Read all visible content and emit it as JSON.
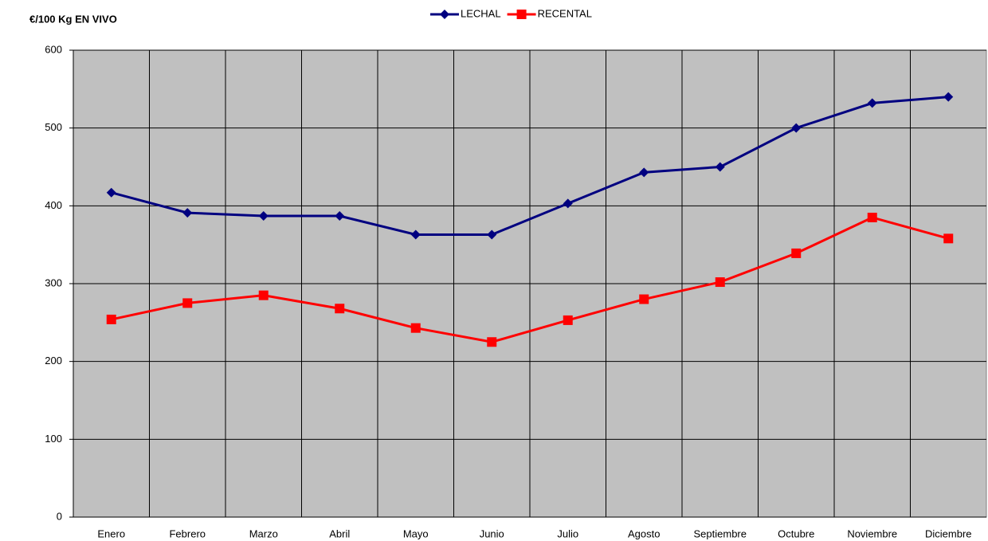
{
  "chart_data": {
    "type": "line",
    "title": "€/100 Kg EN VIVO",
    "categories": [
      "Enero",
      "Febrero",
      "Marzo",
      "Abril",
      "Mayo",
      "Junio",
      "Julio",
      "Agosto",
      "Septiembre",
      "Octubre",
      "Noviembre",
      "Diciembre"
    ],
    "series": [
      {
        "name": "LECHAL",
        "color": "#000080",
        "marker": "diamond",
        "values": [
          417,
          391,
          387,
          387,
          363,
          363,
          403,
          443,
          450,
          500,
          532,
          540
        ]
      },
      {
        "name": "RECENTAL",
        "color": "#ff0000",
        "marker": "square",
        "values": [
          254,
          275,
          285,
          268,
          243,
          225,
          253,
          280,
          302,
          339,
          385,
          358
        ]
      }
    ],
    "ylim": [
      0,
      600
    ],
    "yticks": [
      0,
      100,
      200,
      300,
      400,
      500,
      600
    ],
    "grid": true,
    "legend": "top"
  }
}
